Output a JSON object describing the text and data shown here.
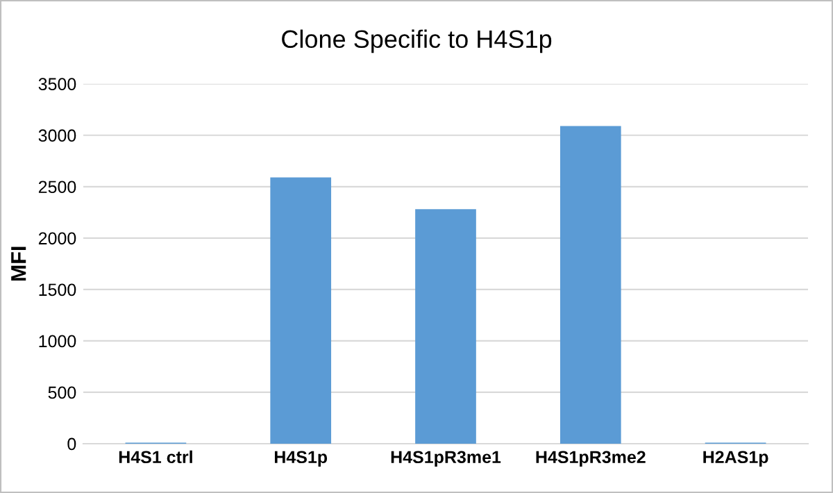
{
  "chart_data": {
    "type": "bar",
    "title": "Clone Specific to H4S1p",
    "ylabel": "MFI",
    "categories": [
      "H4S1 ctrl",
      "H4S1p",
      "H4S1pR3me1",
      "H4S1pR3me2",
      "H2AS1p"
    ],
    "values": [
      10,
      2590,
      2280,
      3090,
      10
    ],
    "color": "#5b9bd5",
    "ylim": [
      0,
      3500
    ],
    "yticks": [
      0,
      500,
      1000,
      1500,
      2000,
      2500,
      3000,
      3500
    ],
    "grid": "y",
    "legend": false
  }
}
